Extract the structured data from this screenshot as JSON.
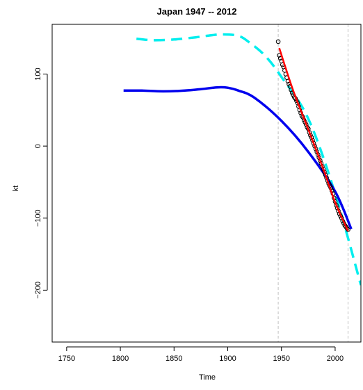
{
  "chart_data": {
    "type": "line",
    "title": "Japan 1947 -- 2012",
    "xlabel": "Time",
    "ylabel": "kt",
    "xlim": [
      1736.5,
      2024
    ],
    "ylim": [
      -272,
      169
    ],
    "xticks": [
      1750,
      1800,
      1850,
      1900,
      1950,
      2000
    ],
    "yticks": [
      -200,
      -100,
      0,
      100
    ],
    "vlines": [
      1947,
      2012
    ],
    "colors": {
      "observed_points": "#000000",
      "fit_line": "#ff0000",
      "blue_curve": "#0000ee",
      "cyan_curve": "#00eeee",
      "vline": "#c0c0c0"
    },
    "series": [
      {
        "style": "blue-solid",
        "x": [
          1803,
          1820,
          1840,
          1860,
          1875,
          1890,
          1900,
          1910,
          1925,
          1950,
          1975,
          2000,
          2015
        ],
        "y": [
          77,
          77,
          76,
          77,
          79,
          81.5,
          81,
          77,
          67,
          35,
          -8,
          -63,
          -115
        ]
      },
      {
        "style": "cyan-dashed",
        "x": [
          1815,
          1830,
          1850,
          1870,
          1880,
          1895,
          1910,
          1920,
          1935,
          1950,
          1975,
          2000,
          2024
        ],
        "y": [
          149,
          147,
          148,
          151,
          153,
          155,
          153,
          144,
          125,
          96,
          38,
          -66,
          -193
        ]
      },
      {
        "style": "red-solid",
        "x": [
          1948,
          1960,
          1970,
          1980,
          1990,
          2000,
          2012
        ],
        "y": [
          136,
          81,
          42,
          4,
          -36,
          -78,
          -118
        ]
      },
      {
        "style": "points",
        "x": [
          1947,
          1948,
          1949,
          1950,
          1951,
          1952,
          1953,
          1954,
          1955,
          1956,
          1957,
          1958,
          1959,
          1960,
          1961,
          1962,
          1963,
          1964,
          1965,
          1966,
          1967,
          1968,
          1969,
          1970,
          1971,
          1972,
          1973,
          1974,
          1975,
          1976,
          1977,
          1978,
          1979,
          1980,
          1981,
          1982,
          1983,
          1984,
          1985,
          1986,
          1987,
          1988,
          1989,
          1990,
          1991,
          1992,
          1993,
          1994,
          1995,
          1996,
          1997,
          1998,
          1999,
          2000,
          2001,
          2002,
          2003,
          2004,
          2005,
          2006,
          2007,
          2008,
          2009,
          2010,
          2011,
          2012
        ],
        "y": [
          145,
          126,
          122,
          118,
          113,
          110,
          105,
          100,
          95,
          90,
          86,
          83,
          78,
          74,
          71,
          68,
          66,
          63,
          60,
          55,
          50,
          46,
          42,
          40,
          36,
          33,
          30,
          26,
          24,
          19,
          15,
          12,
          8,
          4,
          0,
          -4,
          -8,
          -12,
          -16,
          -20,
          -24,
          -28,
          -32,
          -36,
          -40,
          -44,
          -48,
          -52,
          -55,
          -58,
          -62,
          -66,
          -72,
          -77,
          -82,
          -86,
          -90,
          -94,
          -97,
          -100,
          -104,
          -107,
          -110,
          -112,
          -114,
          -116
        ]
      }
    ]
  }
}
